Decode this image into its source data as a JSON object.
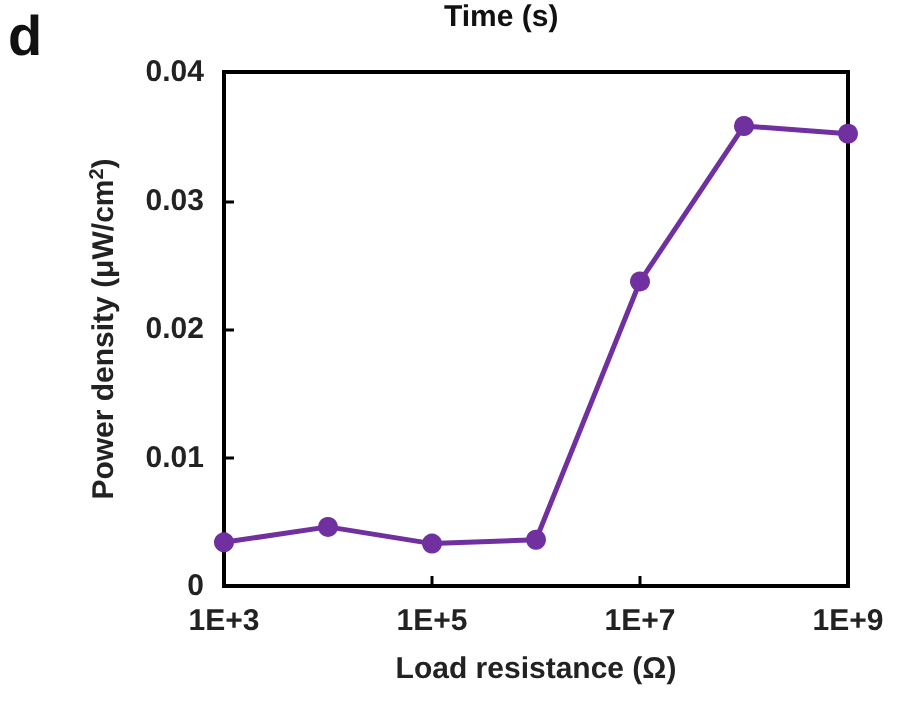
{
  "chart_data": {
    "type": "line",
    "xlabel": "Load resistance (Ω)",
    "ylabel": "Power density (μW/cm$^{2}$)",
    "annotations": [
      "d",
      "Time (s)"
    ],
    "x": [
      1000,
      10000,
      100000,
      1000000,
      10000000,
      100000000,
      1000000000
    ],
    "series": [
      {
        "color": "#7030a0",
        "values": [
          0.0034,
          0.0046,
          0.0033,
          0.0036,
          0.0237,
          0.0358,
          0.0352
        ]
      }
    ],
    "log": "x",
    "xlim": [
      1000,
      1000000000
    ],
    "xticks": [
      {
        "value": 1000,
        "label": "1E+3"
      },
      {
        "value": 100000,
        "label": "1E+5"
      },
      {
        "value": 10000000,
        "label": "1E+7"
      },
      {
        "value": 1000000000,
        "label": "1E+9"
      }
    ],
    "ylim": [
      0,
      0.04
    ],
    "yticks": [
      0,
      0.01,
      0.02,
      0.03,
      0.04
    ],
    "grid": false,
    "marker": "circle",
    "line_style": "solid"
  }
}
